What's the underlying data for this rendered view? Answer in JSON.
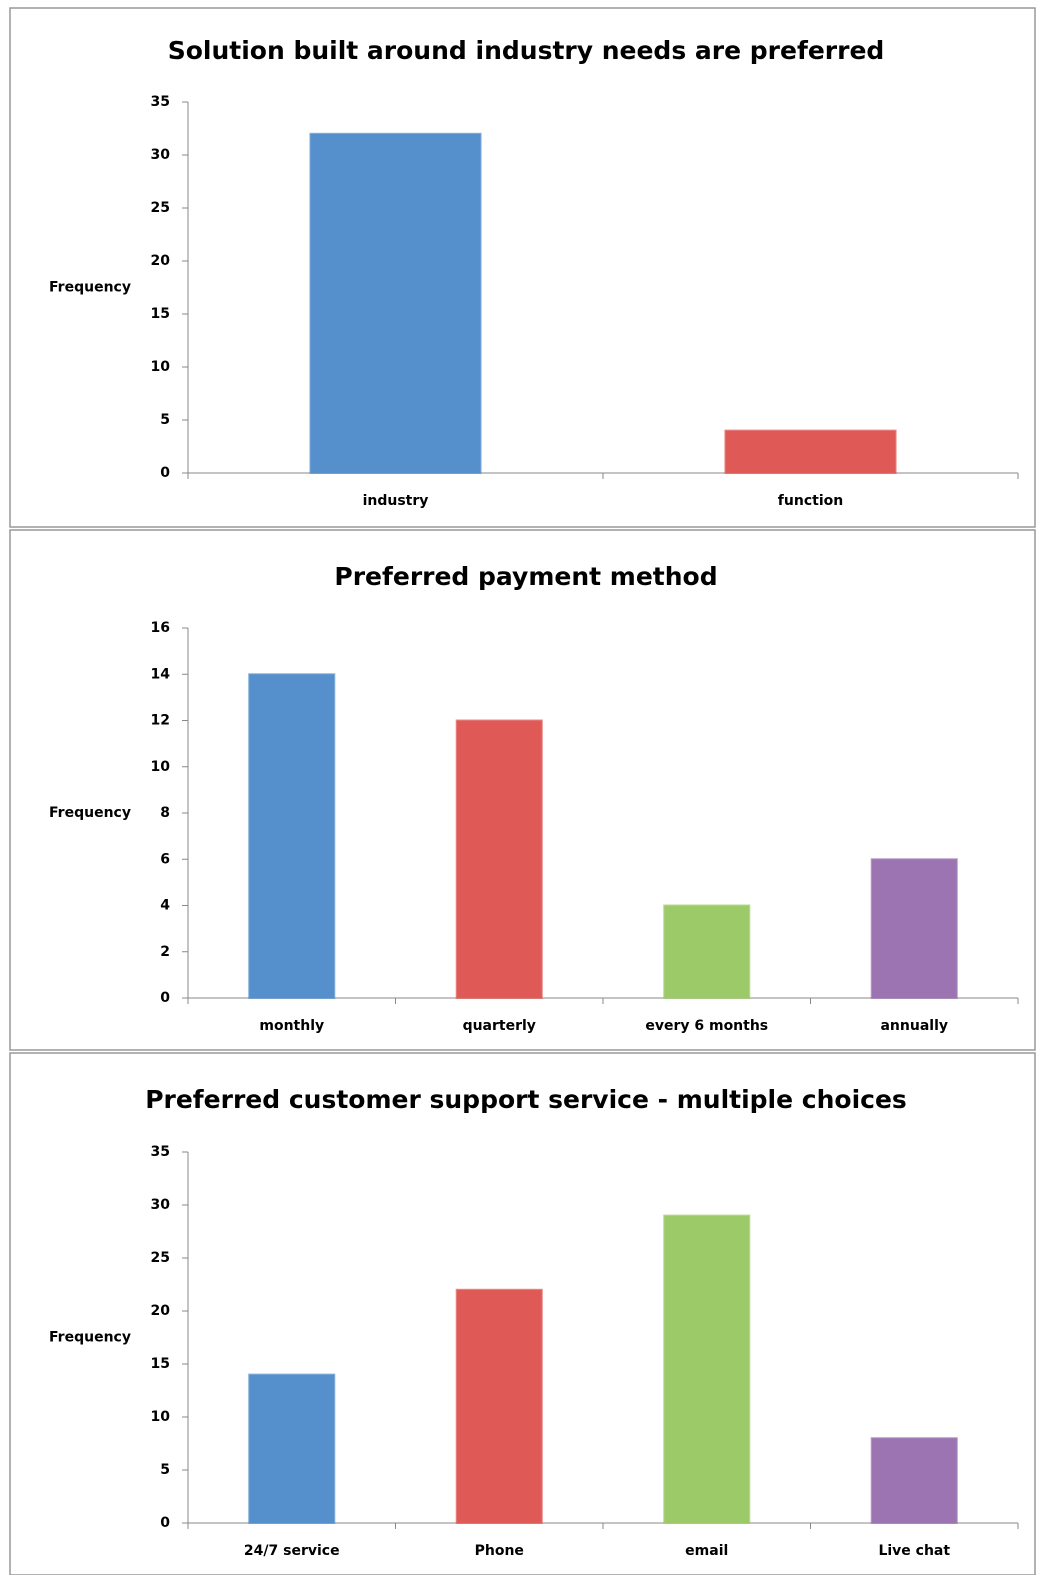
{
  "chart_data": [
    {
      "type": "bar",
      "title": "Solution built around industry needs are preferred",
      "ylabel": "Frequency",
      "categories": [
        "industry",
        "function"
      ],
      "values": [
        32,
        4
      ],
      "colors": [
        "#5590cc",
        "#df5a57"
      ],
      "ylim": [
        0,
        35
      ],
      "yticks": [
        0,
        5,
        10,
        15,
        20,
        25,
        30,
        35
      ]
    },
    {
      "type": "bar",
      "title": "Preferred payment method",
      "ylabel": "Frequency",
      "categories": [
        "monthly",
        "quarterly",
        "every 6 months",
        "annually"
      ],
      "values": [
        14,
        12,
        4,
        6
      ],
      "colors": [
        "#5590cc",
        "#df5a57",
        "#9dca69",
        "#9c74b2"
      ],
      "ylim": [
        0,
        16
      ],
      "yticks": [
        0,
        2,
        4,
        6,
        8,
        10,
        12,
        14,
        16
      ]
    },
    {
      "type": "bar",
      "title": "Preferred customer support service - multiple choices",
      "ylabel": "Frequency",
      "categories": [
        "24/7 service",
        "Phone",
        "email",
        "Live chat"
      ],
      "values": [
        14,
        22,
        29,
        8
      ],
      "colors": [
        "#5590cc",
        "#df5a57",
        "#9dca69",
        "#9c74b2"
      ],
      "ylim": [
        0,
        35
      ],
      "yticks": [
        0,
        5,
        10,
        15,
        20,
        25,
        30,
        35
      ]
    }
  ]
}
